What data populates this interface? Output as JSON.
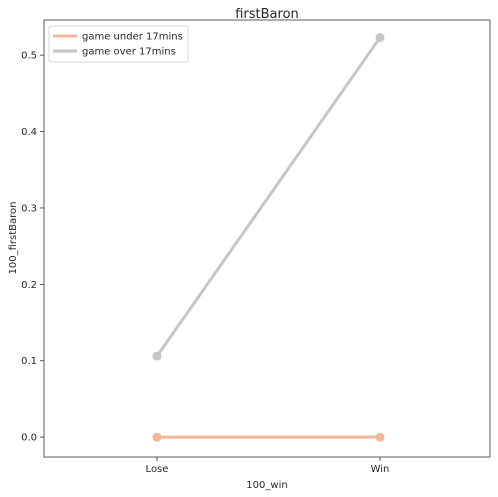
{
  "chart_data": {
    "type": "line",
    "title": "firstBaron",
    "xlabel": "100_win",
    "ylabel": "100_firstBaron",
    "categories": [
      "Lose",
      "Win"
    ],
    "ylim": [
      -0.026,
      0.546
    ],
    "yticks": [
      0.0,
      0.1,
      0.2,
      0.3,
      0.4,
      0.5
    ],
    "ytick_labels": [
      "0.0",
      "0.1",
      "0.2",
      "0.3",
      "0.4",
      "0.5"
    ],
    "grid": false,
    "legend_position": "top-left",
    "series": [
      {
        "name": "game under 17mins",
        "values": [
          0.0,
          0.0
        ],
        "color": "#f4b899"
      },
      {
        "name": "game over 17mins",
        "values": [
          0.106,
          0.523
        ],
        "color": "#c6c6c6"
      }
    ]
  }
}
